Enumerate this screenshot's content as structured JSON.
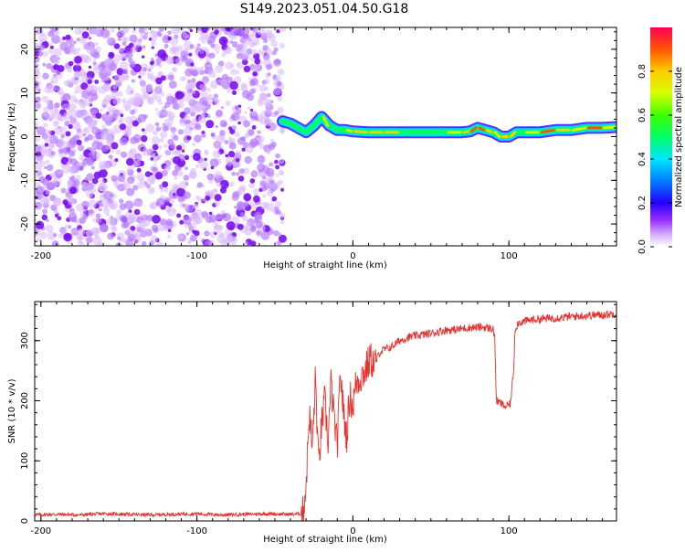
{
  "figure": {
    "title": "S149.2023.051.04.50.G18"
  },
  "chart_data": [
    {
      "type": "heatmap",
      "xlabel": "Height of straight line (km)",
      "ylabel": "Frequency (Hz)",
      "xlim": [
        -204,
        169
      ],
      "ylim": [
        -25,
        25
      ],
      "x_ticks": [
        -200,
        -100,
        0,
        100
      ],
      "y_ticks": [
        -20,
        -10,
        0,
        10,
        20
      ],
      "colorbar": {
        "label": "Normalized spectral amplitude",
        "range": [
          0,
          1
        ],
        "ticks": [
          0.0,
          0.2,
          0.4,
          0.6,
          0.8
        ]
      },
      "noise_region_x": [
        -204,
        -45
      ],
      "ridge": {
        "x": [
          -45,
          -40,
          -35,
          -30,
          -25,
          -20,
          -15,
          -10,
          -5,
          0,
          10,
          20,
          30,
          40,
          50,
          60,
          70,
          75,
          80,
          85,
          90,
          95,
          100,
          105,
          110,
          120,
          130,
          140,
          150,
          160,
          169
        ],
        "freq": [
          3.5,
          3.0,
          2.0,
          1.0,
          2.5,
          4.5,
          2.5,
          1.5,
          1.5,
          1.2,
          1.0,
          1.0,
          1.0,
          1.0,
          1.0,
          1.0,
          1.0,
          1.2,
          2.0,
          1.5,
          1.0,
          0.0,
          0.0,
          1.0,
          1.0,
          1.0,
          1.5,
          1.5,
          2.0,
          2.0,
          2.2
        ],
        "amplitude": [
          0.35,
          0.45,
          0.55,
          0.6,
          0.65,
          0.7,
          0.6,
          0.6,
          0.7,
          0.8,
          0.85,
          0.8,
          0.6,
          0.55,
          0.6,
          0.75,
          0.8,
          0.9,
          0.95,
          0.8,
          0.7,
          0.85,
          0.8,
          0.6,
          0.7,
          0.9,
          0.8,
          0.75,
          0.9,
          0.7,
          0.5
        ]
      },
      "colors": {
        "noise": "#8a2be2",
        "ridge_low": "#1e90ff",
        "ridge_mid": "#00e5ff",
        "ridge_high": "#e8173b"
      }
    },
    {
      "type": "line",
      "xlabel": "Height of straight line (km)",
      "ylabel": "SNR (10 * v/v)",
      "xlim": [
        -204,
        169
      ],
      "ylim": [
        0,
        365
      ],
      "x_ticks": [
        -200,
        -100,
        0,
        100
      ],
      "y_ticks": [
        0,
        100,
        200,
        300
      ],
      "series": [
        {
          "color": "#e8302c",
          "x": [
            -204,
            -190,
            -175,
            -160,
            -145,
            -130,
            -115,
            -100,
            -85,
            -70,
            -55,
            -40,
            -32,
            -30,
            -28,
            -26,
            -24,
            -22,
            -20,
            -18,
            -16,
            -14,
            -12,
            -10,
            -8,
            -6,
            -4,
            -2,
            0,
            2,
            5,
            8,
            11,
            14,
            17,
            20,
            25,
            30,
            35,
            40,
            45,
            50,
            55,
            60,
            65,
            70,
            75,
            80,
            85,
            88,
            90,
            91,
            92,
            95,
            98,
            101,
            103,
            104,
            106,
            110,
            115,
            120,
            130,
            140,
            150,
            160,
            169
          ],
          "y": [
            10,
            11,
            10,
            12,
            11,
            10,
            11,
            12,
            10,
            11,
            12,
            11,
            12,
            60,
            180,
            120,
            240,
            90,
            160,
            200,
            130,
            230,
            170,
            120,
            250,
            180,
            140,
            210,
            190,
            230,
            240,
            250,
            270,
            260,
            280,
            285,
            290,
            300,
            305,
            308,
            310,
            312,
            315,
            318,
            318,
            320,
            322,
            322,
            322,
            320,
            320,
            300,
            200,
            195,
            190,
            195,
            250,
            320,
            330,
            332,
            335,
            336,
            338,
            340,
            342,
            343,
            345
          ]
        }
      ]
    }
  ]
}
